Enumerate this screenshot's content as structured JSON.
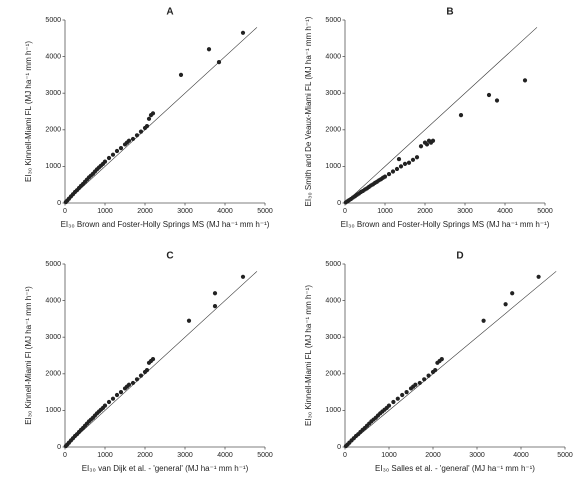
{
  "chart_data": [
    {
      "type": "scatter",
      "title": "A",
      "x_label": "EI₃₀ Brown and Foster-Holly Springs MS (MJ ha⁻¹ mm h⁻¹)",
      "y_label": "EI₃₀ Kinnell-Miami FL (MJ ha⁻¹ mm h⁻¹)",
      "x": [
        20,
        60,
        100,
        150,
        200,
        250,
        300,
        350,
        400,
        450,
        500,
        550,
        600,
        650,
        700,
        750,
        800,
        850,
        900,
        950,
        1000,
        1100,
        1200,
        1300,
        1400,
        1500,
        1550,
        1600,
        1700,
        1800,
        1900,
        2000,
        2050,
        2100,
        2150,
        2200,
        2900,
        3600,
        3850,
        4450
      ],
      "values": [
        25,
        70,
        120,
        180,
        240,
        300,
        350,
        410,
        470,
        520,
        580,
        640,
        700,
        750,
        800,
        860,
        920,
        970,
        1020,
        1070,
        1130,
        1230,
        1320,
        1420,
        1500,
        1600,
        1650,
        1700,
        1750,
        1850,
        1950,
        2050,
        2100,
        2300,
        2400,
        2450,
        3500,
        4200,
        3850,
        4650
      ],
      "reference_line": {
        "x": [
          0,
          4800
        ],
        "y": [
          0,
          4800
        ]
      },
      "color": "#222",
      "xlim": [
        0,
        5000
      ],
      "ylim": [
        0,
        5000
      ],
      "xticks": [
        0,
        1000,
        2000,
        3000,
        4000,
        5000
      ],
      "yticks": [
        0,
        1000,
        2000,
        3000,
        4000,
        5000
      ]
    },
    {
      "type": "scatter",
      "title": "B",
      "x_label": "EI₃₀ Brown and Foster-Holly Springs MS (MJ ha⁻¹ mm h⁻¹)",
      "y_label": "EI₃₀ Smith and De Veaux-Miami FL (MJ ha⁻¹ mm h⁻¹)",
      "x": [
        20,
        60,
        100,
        150,
        200,
        250,
        300,
        350,
        400,
        450,
        500,
        550,
        600,
        650,
        700,
        750,
        800,
        850,
        900,
        950,
        1000,
        1100,
        1200,
        1300,
        1400,
        1350,
        1500,
        1600,
        1700,
        1800,
        1900,
        2000,
        2050,
        2100,
        2150,
        2200,
        2900,
        3600,
        3800,
        4500
      ],
      "values": [
        15,
        45,
        75,
        110,
        150,
        185,
        225,
        260,
        300,
        330,
        370,
        400,
        440,
        480,
        510,
        550,
        580,
        620,
        650,
        690,
        720,
        790,
        860,
        930,
        1000,
        1200,
        1070,
        1100,
        1180,
        1250,
        1550,
        1650,
        1600,
        1700,
        1650,
        1700,
        2400,
        2950,
        2800,
        3350
      ],
      "reference_line": {
        "x": [
          0,
          4800
        ],
        "y": [
          0,
          4800
        ]
      },
      "color": "#222",
      "xlim": [
        0,
        5000
      ],
      "ylim": [
        0,
        5000
      ],
      "xticks": [
        0,
        1000,
        2000,
        3000,
        4000,
        5000
      ],
      "yticks": [
        0,
        1000,
        2000,
        3000,
        4000,
        5000
      ]
    },
    {
      "type": "scatter",
      "title": "C",
      "x_label": "EI₃₀ van Dijk et al. - 'general' (MJ ha⁻¹ mm h⁻¹)",
      "y_label": "EI₃₀ Kinnell-Miami Fl (MJ ha⁻¹ mm h⁻¹)",
      "x": [
        20,
        60,
        100,
        150,
        200,
        250,
        300,
        350,
        400,
        450,
        500,
        550,
        600,
        650,
        700,
        750,
        800,
        850,
        900,
        950,
        1000,
        1100,
        1200,
        1300,
        1400,
        1500,
        1550,
        1600,
        1700,
        1800,
        1900,
        2000,
        2050,
        2100,
        2150,
        2200,
        3100,
        3750,
        3750,
        4450
      ],
      "values": [
        25,
        70,
        120,
        180,
        240,
        300,
        350,
        410,
        470,
        520,
        580,
        640,
        700,
        750,
        800,
        860,
        920,
        970,
        1020,
        1070,
        1130,
        1230,
        1320,
        1420,
        1500,
        1600,
        1650,
        1700,
        1750,
        1850,
        1950,
        2050,
        2100,
        2300,
        2350,
        2400,
        3450,
        4200,
        3850,
        4650
      ],
      "reference_line": {
        "x": [
          0,
          4800
        ],
        "y": [
          0,
          4800
        ]
      },
      "color": "#222",
      "xlim": [
        0,
        5000
      ],
      "ylim": [
        0,
        5000
      ],
      "xticks": [
        0,
        1000,
        2000,
        3000,
        4000,
        5000
      ],
      "yticks": [
        0,
        1000,
        2000,
        3000,
        4000,
        5000
      ]
    },
    {
      "type": "scatter",
      "title": "D",
      "x_label": "EI₃₀ Salles et al. - 'general' (MJ ha⁻¹ mm h⁻¹)",
      "y_label": "EI₃₀ Kinnell-Miami FL (MJ ha⁻¹ mm h⁻¹)",
      "x": [
        20,
        60,
        100,
        150,
        200,
        250,
        300,
        350,
        400,
        450,
        500,
        550,
        600,
        650,
        700,
        750,
        800,
        850,
        900,
        950,
        1000,
        1100,
        1200,
        1300,
        1400,
        1500,
        1550,
        1600,
        1700,
        1800,
        1900,
        2000,
        2050,
        2100,
        2150,
        2200,
        3150,
        3650,
        3800,
        4400
      ],
      "values": [
        25,
        70,
        120,
        180,
        240,
        300,
        350,
        410,
        470,
        520,
        580,
        640,
        700,
        750,
        800,
        860,
        920,
        970,
        1020,
        1070,
        1130,
        1230,
        1320,
        1420,
        1500,
        1600,
        1650,
        1700,
        1750,
        1850,
        1950,
        2050,
        2100,
        2300,
        2350,
        2400,
        3450,
        3900,
        4200,
        4650
      ],
      "reference_line": {
        "x": [
          0,
          4800
        ],
        "y": [
          0,
          4800
        ]
      },
      "color": "#222",
      "xlim": [
        0,
        5000
      ],
      "ylim": [
        0,
        5000
      ],
      "xticks": [
        0,
        1000,
        2000,
        3000,
        4000,
        5000
      ],
      "yticks": [
        0,
        1000,
        2000,
        3000,
        4000,
        5000
      ]
    }
  ]
}
